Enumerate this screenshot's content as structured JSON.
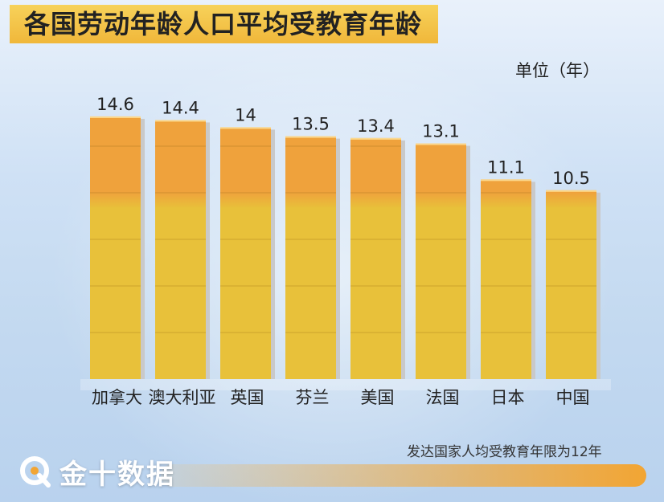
{
  "title": "各国劳动年龄人口平均受教育年龄",
  "unit_label": "单位（年）",
  "note": "发达国家人均受教育年限为12年",
  "brand": "金十数据",
  "colors": {
    "bar_top": "#efa23c",
    "bar_bottom": "#e8c13a",
    "bar_side": "#c9c9c9",
    "title_bg": "#f3c448"
  },
  "chart_data": {
    "type": "bar",
    "title": "各国劳动年龄人口平均受教育年龄",
    "ylabel": "单位（年）",
    "categories": [
      "加拿大",
      "澳大利亚",
      "英国",
      "芬兰",
      "美国",
      "法国",
      "日本",
      "中国"
    ],
    "values": [
      14.6,
      14.4,
      14,
      13.5,
      13.4,
      13.1,
      11.1,
      10.5
    ],
    "value_labels": [
      "14.6",
      "14.4",
      "14",
      "13.5",
      "13.4",
      "13.1",
      "11.1",
      "10.5"
    ],
    "ylim": [
      0,
      14.6
    ],
    "grid": false
  }
}
